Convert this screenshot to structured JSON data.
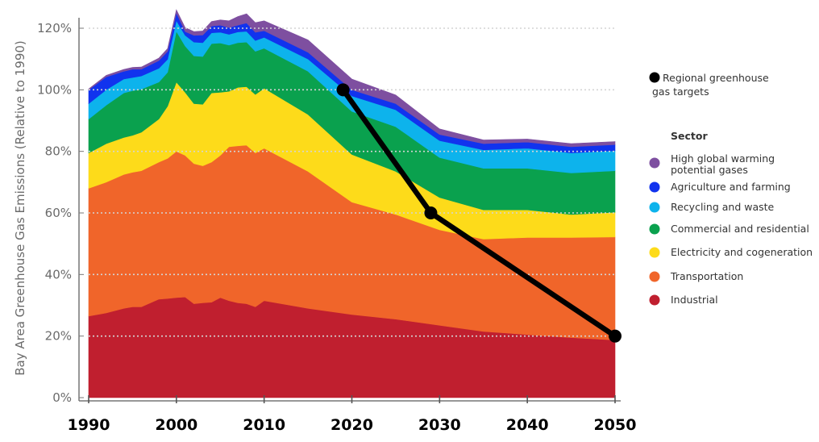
{
  "chart_data": {
    "type": "area",
    "ylabel": "Bay Area Greenhouse Gas Emissions (Relative to 1990)",
    "xlabel": "",
    "xlim": [
      1990,
      2050
    ],
    "ylim": [
      0,
      120
    ],
    "x_ticks": [
      "1990",
      "2000",
      "2010",
      "2020",
      "2030",
      "2040",
      "2050"
    ],
    "y_ticks": [
      "0%",
      "20%",
      "40%",
      "60%",
      "80%",
      "100%",
      "120%"
    ],
    "y_grid": true,
    "stacked": true,
    "x": [
      1990,
      1992,
      1994,
      1995,
      1996,
      1998,
      1999,
      2000,
      2001,
      2002,
      2003,
      2004,
      2005,
      2006,
      2007,
      2008,
      2009,
      2010,
      2015,
      2020,
      2025,
      2030,
      2035,
      2040,
      2045,
      2050
    ],
    "legend_title": "Sector",
    "legend_position": "right",
    "series": [
      {
        "name": "Industrial",
        "color": "#c01f2f",
        "values": [
          26.5,
          27.5,
          29,
          29.5,
          29.5,
          32,
          32.2,
          32.5,
          32.7,
          30.5,
          30.8,
          31,
          32.5,
          31.5,
          30.8,
          30.5,
          29.5,
          31.5,
          29,
          27,
          25.5,
          23.5,
          21.5,
          20.5,
          19.5,
          18.7
        ]
      },
      {
        "name": "Transportation",
        "color": "#f0652a",
        "values": [
          41.5,
          42.5,
          43.5,
          43.7,
          44.2,
          44.5,
          45.5,
          47.5,
          46,
          45.5,
          44.5,
          45.5,
          46.2,
          50,
          51,
          51.5,
          50,
          49.5,
          44.5,
          36.5,
          34,
          31,
          30,
          31.5,
          32.5,
          33.5
        ]
      },
      {
        "name": "Electricity and cogeneration",
        "color": "#fddb1a",
        "values": [
          11.5,
          12.5,
          12,
          12,
          12.5,
          14,
          17,
          22.5,
          20.5,
          19.5,
          20,
          22.5,
          20.5,
          18,
          19,
          19,
          19,
          19.5,
          18.5,
          15.5,
          14,
          10.5,
          9.5,
          9,
          7.5,
          8
        ]
      },
      {
        "name": "Commercial and residential",
        "color": "#0aa14e",
        "values": [
          11,
          12.5,
          14.5,
          14.5,
          14,
          12,
          11,
          16.5,
          15,
          15.5,
          15.5,
          16,
          16,
          15,
          14.5,
          14.5,
          14,
          13,
          14,
          14,
          14.5,
          13,
          13.5,
          13.5,
          13.5,
          13.5
        ]
      },
      {
        "name": "Recycling and waste",
        "color": "#0db3ec",
        "values": [
          5,
          5,
          4.5,
          4.3,
          4.3,
          4.5,
          4.2,
          3.5,
          3.5,
          4.5,
          4.5,
          3.5,
          3.5,
          3.5,
          3.5,
          3.5,
          3.5,
          3.5,
          4,
          5,
          5.5,
          5.5,
          6,
          6.5,
          6.5,
          6.5
        ]
      },
      {
        "name": "Agriculture and farming",
        "color": "#1133ee",
        "values": [
          4.5,
          4.2,
          2.5,
          2.7,
          2.2,
          2.5,
          2.6,
          2.5,
          1.2,
          2.2,
          2.5,
          2.2,
          2.3,
          2.2,
          2.2,
          2.7,
          2.7,
          2.2,
          2.2,
          2,
          2,
          2,
          2,
          2,
          2,
          2
        ]
      },
      {
        "name": "High global warming potential  gases",
        "color": "#7e4fa0",
        "values": [
          0.3,
          0.5,
          0.6,
          0.6,
          0.7,
          0.8,
          0.9,
          1,
          1.3,
          1.2,
          1.3,
          1.5,
          1.7,
          2.2,
          2.8,
          3,
          3.1,
          3.2,
          4,
          3.5,
          2.8,
          1.8,
          1.2,
          1,
          1,
          1
        ]
      }
    ],
    "targets": {
      "name": "Regional greenhouse gas targets",
      "color": "#000000",
      "points": [
        {
          "x": 2019,
          "y": 100
        },
        {
          "x": 2029,
          "y": 60
        },
        {
          "x": 2050,
          "y": 20
        }
      ]
    }
  }
}
